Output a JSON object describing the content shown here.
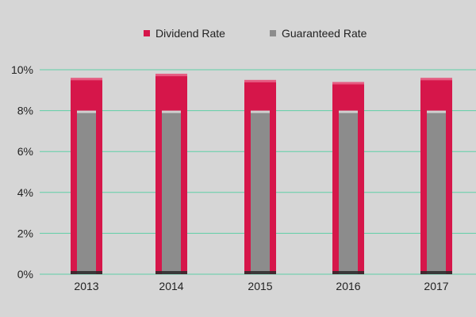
{
  "chart_data": {
    "type": "bar",
    "categories": [
      "2013",
      "2014",
      "2015",
      "2016",
      "2017"
    ],
    "series": [
      {
        "name": "Dividend Rate",
        "values": [
          9.6,
          9.8,
          9.5,
          9.4,
          9.6
        ],
        "color": "#d6164a"
      },
      {
        "name": "Guaranteed Rate",
        "values": [
          8,
          8,
          8,
          8,
          8
        ],
        "color": "#8c8c8c"
      }
    ],
    "ylim": [
      0,
      10
    ],
    "yticks": [
      "0%",
      "2%",
      "4%",
      "6%",
      "8%",
      "10%"
    ],
    "ytick_values": [
      0,
      2,
      4,
      6,
      8,
      10
    ],
    "grid": true,
    "grid_color": "#5fcfa6",
    "background": "#d6d6d6",
    "legend_position": "top-center",
    "layout": "overlapping bars (guaranteed bar drawn inside dividend bar)"
  }
}
